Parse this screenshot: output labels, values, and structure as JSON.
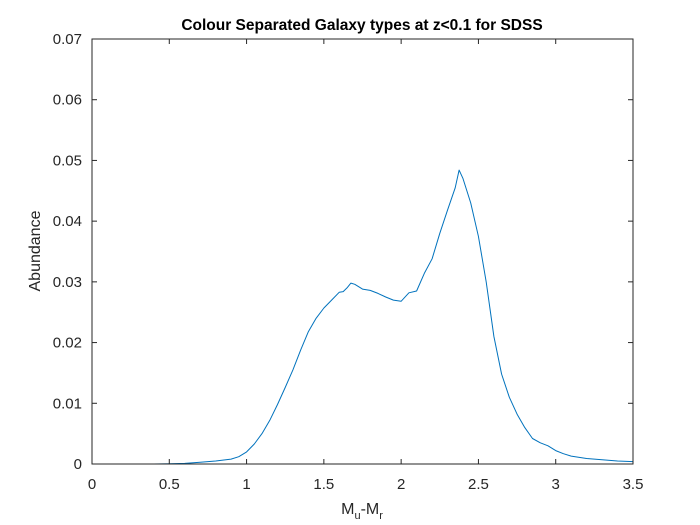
{
  "chart_data": {
    "type": "line",
    "title": "Colour Separated Galaxy types at z<0.1 for SDSS",
    "xlabel": {
      "base": "M",
      "sub1": "u",
      "mid": "-M",
      "sub2": "r"
    },
    "ylabel": "Abundance",
    "xlim": [
      0,
      3.5
    ],
    "ylim": [
      0,
      0.07
    ],
    "xticks": [
      0,
      0.5,
      1,
      1.5,
      2,
      2.5,
      3,
      3.5
    ],
    "xtick_labels": [
      "0",
      "0.5",
      "1",
      "1.5",
      "2",
      "2.5",
      "3",
      "3.5"
    ],
    "yticks": [
      0,
      0.01,
      0.02,
      0.03,
      0.04,
      0.05,
      0.06,
      0.07
    ],
    "ytick_labels": [
      "0",
      "0.01",
      "0.02",
      "0.03",
      "0.04",
      "0.05",
      "0.06",
      "0.07"
    ],
    "grid": false,
    "box": true,
    "series": [
      {
        "color": "#0072BD",
        "x": [
          0,
          0.1,
          0.2,
          0.3,
          0.4,
          0.5,
          0.6,
          0.7,
          0.8,
          0.9,
          0.95,
          1.0,
          1.05,
          1.1,
          1.15,
          1.2,
          1.25,
          1.3,
          1.35,
          1.4,
          1.45,
          1.5,
          1.55,
          1.6,
          1.625,
          1.65,
          1.675,
          1.7,
          1.75,
          1.8,
          1.85,
          1.9,
          1.95,
          2.0,
          2.05,
          2.1,
          2.15,
          2.2,
          2.25,
          2.3,
          2.35,
          2.375,
          2.4,
          2.45,
          2.5,
          2.55,
          2.6,
          2.65,
          2.7,
          2.75,
          2.8,
          2.85,
          2.9,
          2.95,
          3.0,
          3.05,
          3.1,
          3.2,
          3.3,
          3.4,
          3.5
        ],
        "y": [
          0.0,
          0.0,
          0.0,
          0.0,
          0.0,
          5e-05,
          0.0001,
          0.0003,
          0.0005,
          0.0008,
          0.0012,
          0.002,
          0.0033,
          0.005,
          0.0072,
          0.0098,
          0.0126,
          0.0155,
          0.0188,
          0.0218,
          0.024,
          0.0257,
          0.027,
          0.0283,
          0.0284,
          0.029,
          0.0298,
          0.0296,
          0.0288,
          0.0286,
          0.0281,
          0.0275,
          0.027,
          0.0268,
          0.0282,
          0.0285,
          0.0314,
          0.0338,
          0.038,
          0.0418,
          0.0455,
          0.0484,
          0.047,
          0.043,
          0.0375,
          0.03,
          0.021,
          0.0148,
          0.011,
          0.0082,
          0.006,
          0.0042,
          0.0035,
          0.003,
          0.0022,
          0.0017,
          0.0013,
          0.0009,
          0.0007,
          0.0005,
          0.0004
        ]
      }
    ]
  }
}
